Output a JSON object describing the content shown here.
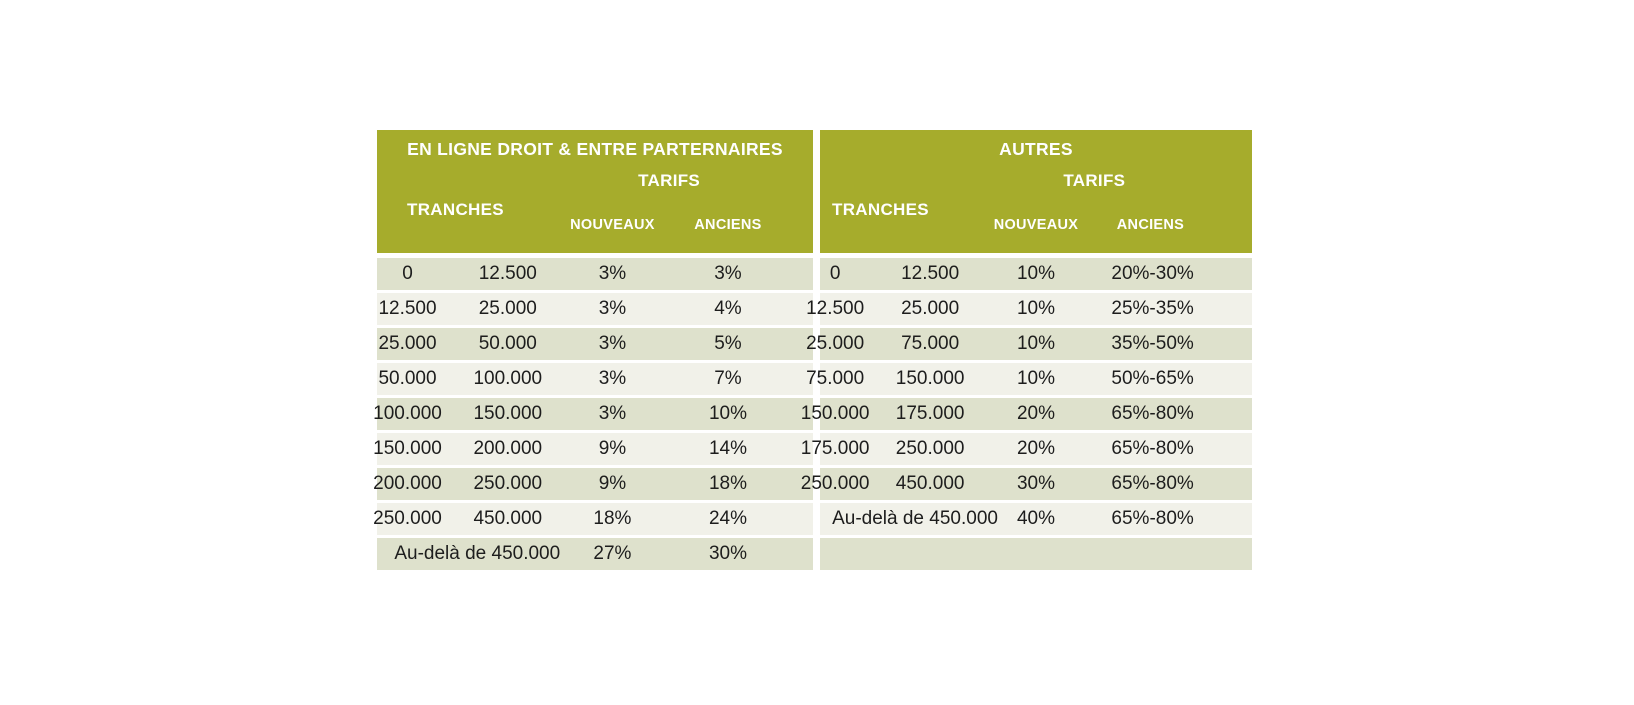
{
  "colors": {
    "header_bg": "#a6ac2c",
    "row_dark": "#dee1cc",
    "row_light": "#f1f1e9",
    "header_text": "#ffffff",
    "body_text": "#1d1d1d",
    "page_bg": "#ffffff"
  },
  "tables": [
    {
      "title": "EN LIGNE DROIT & ENTRE PARTERNAIRES",
      "tarifs_label": "TARIFS",
      "tranches_label": "TRANCHES",
      "columns": {
        "nouveaux": "NOUVEAUX",
        "anciens": "ANCIENS"
      },
      "rows": [
        {
          "from": "0",
          "to": "12.500",
          "nouveaux": "3%",
          "anciens": "3%"
        },
        {
          "from": "12.500",
          "to": "25.000",
          "nouveaux": "3%",
          "anciens": "4%"
        },
        {
          "from": "25.000",
          "to": "50.000",
          "nouveaux": "3%",
          "anciens": "5%"
        },
        {
          "from": "50.000",
          "to": "100.000",
          "nouveaux": "3%",
          "anciens": "7%"
        },
        {
          "from": "100.000",
          "to": "150.000",
          "nouveaux": "3%",
          "anciens": "10%"
        },
        {
          "from": "150.000",
          "to": "200.000",
          "nouveaux": "9%",
          "anciens": "14%"
        },
        {
          "from": "200.000",
          "to": "250.000",
          "nouveaux": "9%",
          "anciens": "18%"
        },
        {
          "from": "250.000",
          "to": "450.000",
          "nouveaux": "18%",
          "anciens": "24%"
        },
        {
          "span": "Au-delà de 450.000",
          "nouveaux": "27%",
          "anciens": "30%"
        }
      ]
    },
    {
      "title": "AUTRES",
      "tarifs_label": "TARIFS",
      "tranches_label": "TRANCHES",
      "columns": {
        "nouveaux": "NOUVEAUX",
        "anciens": "ANCIENS"
      },
      "rows": [
        {
          "from": "0",
          "to": "12.500",
          "nouveaux": "10%",
          "anciens": "20%-30%"
        },
        {
          "from": "12.500",
          "to": "25.000",
          "nouveaux": "10%",
          "anciens": "25%-35%"
        },
        {
          "from": "25.000",
          "to": "75.000",
          "nouveaux": "10%",
          "anciens": "35%-50%"
        },
        {
          "from": "75.000",
          "to": "150.000",
          "nouveaux": "10%",
          "anciens": "50%-65%"
        },
        {
          "from": "150.000",
          "to": "175.000",
          "nouveaux": "20%",
          "anciens": "65%-80%"
        },
        {
          "from": "175.000",
          "to": "250.000",
          "nouveaux": "20%",
          "anciens": "65%-80%"
        },
        {
          "from": "250.000",
          "to": "450.000",
          "nouveaux": "30%",
          "anciens": "65%-80%"
        },
        {
          "span": "Au-delà de 450.000",
          "nouveaux": "40%",
          "anciens": "65%-80%"
        },
        {
          "empty": true
        }
      ]
    }
  ],
  "chart_data": [
    {
      "type": "table",
      "title": "EN LIGNE DROIT & ENTRE PARTERNAIRES",
      "columns": [
        "TRANCHES (de)",
        "TRANCHES (à)",
        "TARIFS NOUVEAUX",
        "TARIFS ANCIENS"
      ],
      "rows": [
        [
          "0",
          "12.500",
          "3%",
          "3%"
        ],
        [
          "12.500",
          "25.000",
          "3%",
          "4%"
        ],
        [
          "25.000",
          "50.000",
          "3%",
          "5%"
        ],
        [
          "50.000",
          "100.000",
          "3%",
          "7%"
        ],
        [
          "100.000",
          "150.000",
          "3%",
          "10%"
        ],
        [
          "150.000",
          "200.000",
          "9%",
          "14%"
        ],
        [
          "200.000",
          "250.000",
          "9%",
          "18%"
        ],
        [
          "250.000",
          "450.000",
          "18%",
          "24%"
        ],
        [
          "Au-delà de 450.000",
          "",
          "27%",
          "30%"
        ]
      ]
    },
    {
      "type": "table",
      "title": "AUTRES",
      "columns": [
        "TRANCHES (de)",
        "TRANCHES (à)",
        "TARIFS NOUVEAUX",
        "TARIFS ANCIENS"
      ],
      "rows": [
        [
          "0",
          "12.500",
          "10%",
          "20%-30%"
        ],
        [
          "12.500",
          "25.000",
          "10%",
          "25%-35%"
        ],
        [
          "25.000",
          "75.000",
          "10%",
          "35%-50%"
        ],
        [
          "75.000",
          "150.000",
          "10%",
          "50%-65%"
        ],
        [
          "150.000",
          "175.000",
          "20%",
          "65%-80%"
        ],
        [
          "175.000",
          "250.000",
          "20%",
          "65%-80%"
        ],
        [
          "250.000",
          "450.000",
          "30%",
          "65%-80%"
        ],
        [
          "Au-delà de 450.000",
          "",
          "40%",
          "65%-80%"
        ]
      ]
    }
  ]
}
